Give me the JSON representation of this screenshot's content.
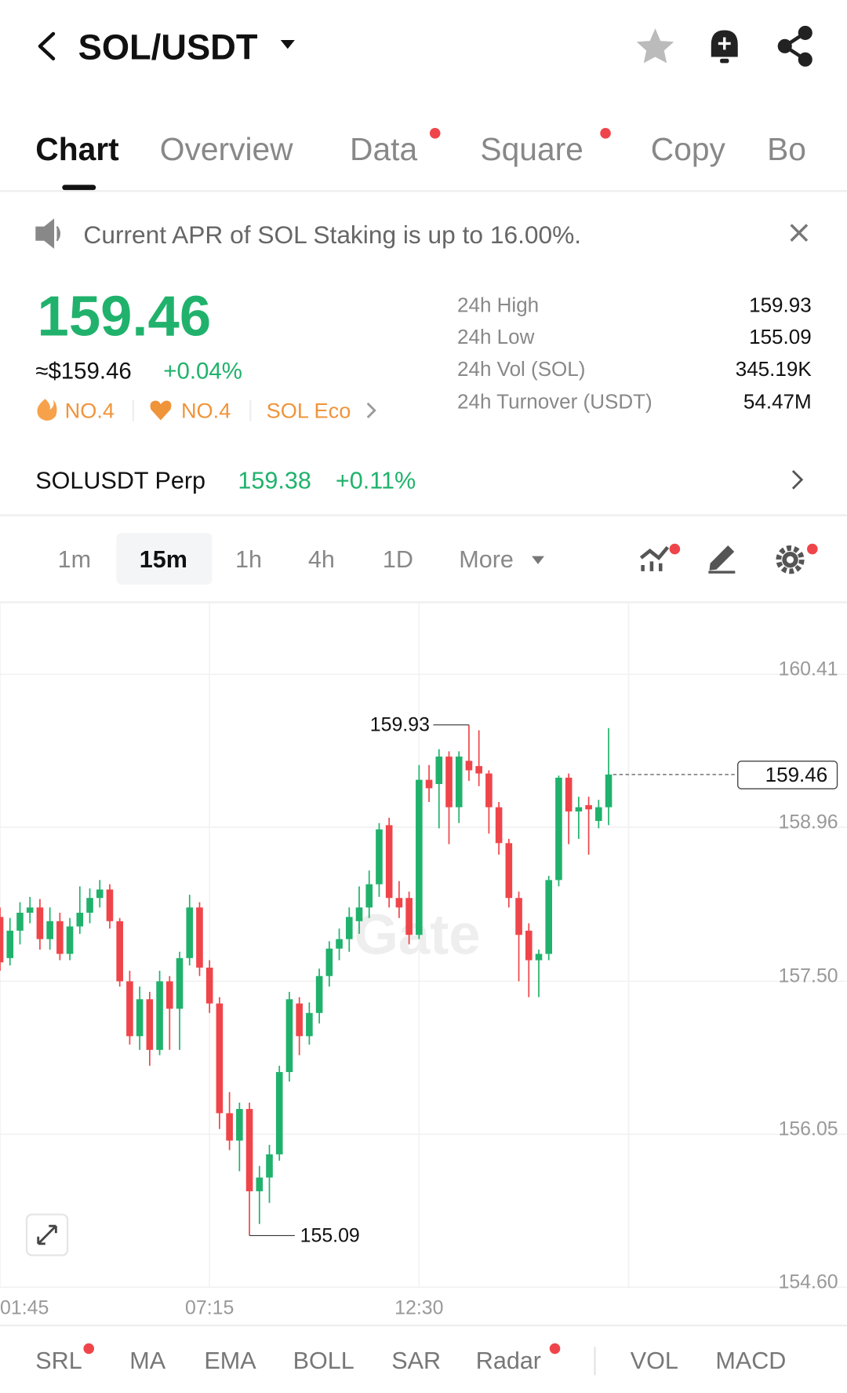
{
  "header": {
    "title": "SOL/USDT"
  },
  "tabs": [
    "Chart",
    "Overview",
    "Data",
    "Square",
    "Copy",
    "Bo"
  ],
  "notice": "Current APR of SOL Staking is up to 16.00%.",
  "price": {
    "last": "159.46",
    "fiat": "≈$159.46",
    "change": "+0.04%",
    "tags": [
      "NO.4",
      "NO.4",
      "SOL Eco"
    ]
  },
  "stats": {
    "labels": [
      "24h High",
      "24h Low",
      "24h Vol (SOL)",
      "24h Turnover (USDT)"
    ],
    "values": [
      "159.93",
      "155.09",
      "345.19K",
      "54.47M"
    ]
  },
  "perp": {
    "name": "SOLUSDT Perp",
    "price": "159.38",
    "change": "+0.11%"
  },
  "intervals": [
    "1m",
    "15m",
    "1h",
    "4h",
    "1D",
    "More"
  ],
  "chart_data": {
    "type": "candlestick",
    "watermark": "Gate",
    "categories": [
      "01:45",
      null,
      null,
      null,
      null,
      null,
      null,
      null,
      null,
      null,
      null,
      null,
      null,
      null,
      null,
      null,
      null,
      null,
      null,
      null,
      null,
      "07:15",
      null,
      null,
      null,
      null,
      null,
      null,
      null,
      null,
      null,
      null,
      null,
      null,
      null,
      null,
      null,
      null,
      null,
      null,
      null,
      null,
      "12:30",
      null,
      null,
      null,
      null,
      null,
      null,
      null,
      null,
      null,
      null,
      null,
      null,
      null,
      null,
      null,
      null,
      null,
      null,
      null
    ],
    "open": [
      158.11,
      157.72,
      157.98,
      158.15,
      158.2,
      157.9,
      158.07,
      157.76,
      158.02,
      158.15,
      158.29,
      158.37,
      158.07,
      157.5,
      156.98,
      157.33,
      156.85,
      157.5,
      157.24,
      157.72,
      158.2,
      157.63,
      157.29,
      156.25,
      155.99,
      156.29,
      155.51,
      155.64,
      155.86,
      156.64,
      157.29,
      156.98,
      157.2,
      157.55,
      157.81,
      157.9,
      158.07,
      158.2,
      158.42,
      158.98,
      158.29,
      158.29,
      157.94,
      159.41,
      159.37,
      159.63,
      159.15,
      159.59,
      159.54,
      159.47,
      159.15,
      158.81,
      158.29,
      157.98,
      157.7,
      157.76,
      158.46,
      159.43,
      159.11,
      159.17,
      159.02,
      159.15
    ],
    "high": [
      158.2,
      158.1,
      158.25,
      158.3,
      158.28,
      158.2,
      158.15,
      158.1,
      158.4,
      158.38,
      158.46,
      158.42,
      158.1,
      157.6,
      157.45,
      157.4,
      157.6,
      157.55,
      157.78,
      158.32,
      158.25,
      157.7,
      157.35,
      156.45,
      156.35,
      156.35,
      155.75,
      155.95,
      156.7,
      157.4,
      157.35,
      157.3,
      157.62,
      157.88,
      158,
      158.2,
      158.4,
      158.55,
      159,
      159.05,
      158.45,
      158.35,
      159.55,
      159.55,
      159.7,
      159.68,
      159.68,
      159.93,
      159.88,
      159.5,
      159.2,
      158.85,
      158.35,
      158.05,
      157.8,
      158.5,
      159.45,
      159.47,
      159.25,
      159.25,
      159.22,
      159.9
    ],
    "low": [
      157.6,
      157.65,
      157.85,
      158.05,
      157.8,
      157.8,
      157.7,
      157.7,
      157.95,
      158.05,
      158.2,
      158,
      157.45,
      156.9,
      156.85,
      156.7,
      156.8,
      156.85,
      156.85,
      157.65,
      157.55,
      157.2,
      156.1,
      155.9,
      155.7,
      155.09,
      155.2,
      155.4,
      155.8,
      156.55,
      156.8,
      156.9,
      157.1,
      157.45,
      157.7,
      157.78,
      157.95,
      158.1,
      158.3,
      158.2,
      158.1,
      157.85,
      157.9,
      159.2,
      158.95,
      158.8,
      159,
      159.4,
      159.35,
      158.9,
      158.7,
      158.2,
      157.5,
      157.35,
      157.35,
      157.7,
      158.4,
      158.8,
      158.85,
      158.7,
      158.95,
      158.98
    ],
    "close": [
      157.68,
      157.98,
      158.15,
      158.2,
      157.9,
      158.07,
      157.76,
      158.02,
      158.15,
      158.29,
      158.37,
      158.07,
      157.5,
      156.98,
      157.33,
      156.85,
      157.5,
      157.24,
      157.72,
      158.2,
      157.63,
      157.29,
      156.25,
      155.99,
      156.29,
      155.51,
      155.64,
      155.86,
      156.64,
      157.33,
      156.98,
      157.2,
      157.55,
      157.81,
      157.9,
      158.11,
      158.2,
      158.42,
      158.94,
      158.29,
      158.2,
      157.94,
      159.41,
      159.33,
      159.63,
      159.15,
      159.63,
      159.5,
      159.47,
      159.15,
      158.81,
      158.29,
      157.94,
      157.7,
      157.76,
      158.46,
      159.43,
      159.11,
      159.15,
      159.13,
      159.15,
      159.46
    ],
    "up_color": "#20b26c",
    "down_color": "#ef454a",
    "ylim": [
      154.6,
      161.05
    ],
    "yticks": [
      160.41,
      158.96,
      {
        "value": 157.5,
        "label": "157.50"
      },
      156.05,
      {
        "value": 154.6,
        "label": "154.60"
      }
    ],
    "grid": true,
    "max_label": 159.93,
    "min_label": 155.09,
    "last_price": 159.46
  },
  "indicators": [
    "SRL",
    "MA",
    "EMA",
    "BOLL",
    "SAR",
    "Radar",
    "VOL",
    "MACD"
  ]
}
